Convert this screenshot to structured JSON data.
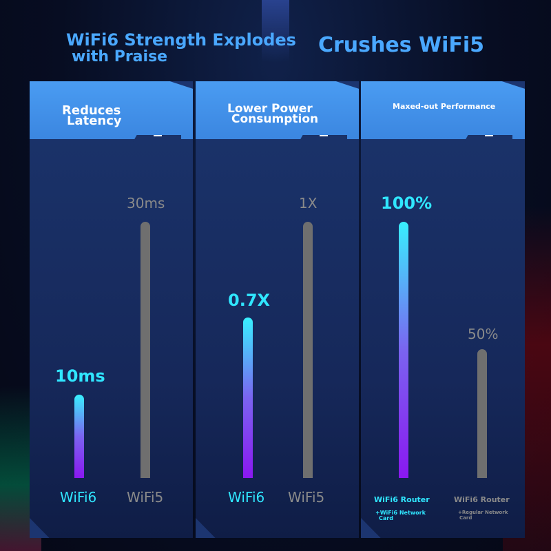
{
  "header": {
    "title_line1": "WiFi6 Strength Explodes",
    "title_line2": "with Praise",
    "title_right": "Crushes WiFi5"
  },
  "panels": [
    {
      "heading_line1": "Reduces",
      "heading_line2": "Latency",
      "wifi6": {
        "value_label": "10ms",
        "value": 10,
        "label": "WiFi6"
      },
      "wifi5": {
        "value_label": "30ms",
        "value": 30,
        "label": "WiFi5"
      }
    },
    {
      "heading_line1": "Lower Power",
      "heading_line2": "Consumption",
      "wifi6": {
        "value_label": "0.7X",
        "value": 0.7,
        "label": "WiFi6"
      },
      "wifi5": {
        "value_label": "1X",
        "value": 1,
        "label": "WiFi5"
      }
    },
    {
      "heading": "Maxed-out Performance",
      "wifi6": {
        "value_label": "100%",
        "value": 100,
        "label": "WiFi6 Router",
        "sub_line1": "+WiFi6 Network",
        "sub_line2": "Card"
      },
      "wifi5": {
        "value_label": "50%",
        "value": 50,
        "label": "WiFi6 Router",
        "sub_line1": "+Regular Network",
        "sub_line2": "Card"
      }
    }
  ],
  "colors": {
    "accent_cyan": "#30e6ff",
    "bar_gray": "#6f6f6f",
    "heading_blue": "#4aa8ff",
    "panel_head": "#4a9cf2"
  }
}
